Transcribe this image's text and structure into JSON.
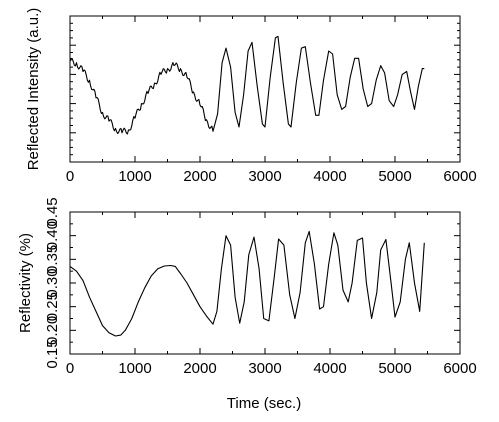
{
  "chart_data": [
    {
      "type": "line",
      "title": "",
      "xlabel": "",
      "ylabel": "Reflected Intensity (a.u.)",
      "xlim": [
        0,
        6000
      ],
      "ylim": [
        0,
        10
      ],
      "xticks": [
        "0",
        "1000",
        "2000",
        "3000",
        "4000",
        "5000",
        "6000"
      ],
      "yticks": [],
      "grid": false,
      "legend": "none",
      "line_color": "#000000",
      "series": [
        {
          "x": [
            0,
            100,
            200,
            300,
            400,
            500,
            600,
            700,
            800,
            900,
            1000,
            1100,
            1200,
            1300,
            1400,
            1500,
            1600,
            1700,
            1800,
            1900,
            2000,
            2100,
            2200,
            2270,
            2340,
            2400,
            2470,
            2540,
            2600,
            2670,
            2740,
            2800,
            2880,
            2960,
            3000,
            3080,
            3160,
            3200,
            3280,
            3360,
            3400,
            3480,
            3560,
            3620,
            3700,
            3780,
            3830,
            3900,
            3980,
            4040,
            4110,
            4180,
            4240,
            4310,
            4380,
            4440,
            4510,
            4580,
            4640,
            4710,
            4780,
            4840,
            4910,
            4980,
            5040,
            5110,
            5180,
            5240,
            5300,
            5360,
            5420,
            5450
          ],
          "values": [
            6.9,
            6.8,
            6.2,
            5.6,
            4.4,
            3.4,
            2.8,
            2.3,
            2.0,
            2.2,
            3.0,
            4.0,
            4.7,
            5.4,
            6.0,
            6.4,
            6.6,
            6.4,
            5.8,
            4.8,
            3.9,
            2.9,
            2.1,
            3.3,
            6.8,
            7.8,
            6.5,
            3.4,
            2.4,
            4.6,
            7.6,
            8.2,
            5.2,
            2.6,
            2.4,
            5.8,
            8.5,
            8.6,
            5.4,
            2.6,
            2.4,
            5.4,
            7.8,
            7.9,
            5.4,
            3.2,
            3.2,
            5.6,
            7.6,
            7.4,
            4.6,
            3.6,
            3.8,
            5.8,
            7.1,
            7.1,
            5.0,
            3.8,
            4.0,
            5.6,
            6.6,
            6.1,
            4.2,
            3.8,
            4.6,
            6.0,
            6.2,
            4.8,
            3.6,
            5.2,
            6.4,
            6.4
          ]
        }
      ]
    },
    {
      "type": "line",
      "title": "",
      "xlabel": "Time (sec.)",
      "ylabel": "Reflectivity (%)",
      "xlim": [
        0,
        6000
      ],
      "ylim": [
        0.15,
        0.45
      ],
      "xticks": [
        "0",
        "1000",
        "2000",
        "3000",
        "4000",
        "5000",
        "6000"
      ],
      "yticks": [
        "0.15",
        "0.20",
        "0.25",
        "0.30",
        "0.35",
        "0.40",
        "0.45"
      ],
      "grid": false,
      "legend": "none",
      "line_color": "#000000",
      "series": [
        {
          "x": [
            0,
            100,
            200,
            300,
            400,
            500,
            600,
            700,
            780,
            850,
            950,
            1050,
            1150,
            1250,
            1350,
            1450,
            1550,
            1620,
            1700,
            1800,
            1900,
            2000,
            2100,
            2200,
            2260,
            2330,
            2400,
            2470,
            2540,
            2610,
            2680,
            2750,
            2830,
            2910,
            2980,
            3060,
            3140,
            3210,
            3290,
            3380,
            3460,
            3540,
            3620,
            3680,
            3760,
            3840,
            3900,
            3980,
            4060,
            4120,
            4200,
            4280,
            4340,
            4420,
            4500,
            4560,
            4640,
            4720,
            4780,
            4860,
            4940,
            5000,
            5080,
            5160,
            5220,
            5300,
            5380,
            5450
          ],
          "values": [
            0.335,
            0.325,
            0.305,
            0.27,
            0.24,
            0.21,
            0.195,
            0.188,
            0.19,
            0.2,
            0.225,
            0.26,
            0.29,
            0.315,
            0.33,
            0.336,
            0.337,
            0.335,
            0.32,
            0.3,
            0.275,
            0.25,
            0.23,
            0.213,
            0.24,
            0.33,
            0.4,
            0.38,
            0.27,
            0.215,
            0.26,
            0.36,
            0.397,
            0.33,
            0.225,
            0.22,
            0.31,
            0.393,
            0.38,
            0.275,
            0.225,
            0.28,
            0.385,
            0.409,
            0.34,
            0.245,
            0.25,
            0.34,
            0.406,
            0.38,
            0.285,
            0.26,
            0.3,
            0.39,
            0.395,
            0.3,
            0.225,
            0.28,
            0.37,
            0.392,
            0.3,
            0.228,
            0.26,
            0.35,
            0.385,
            0.3,
            0.24,
            0.385
          ]
        }
      ]
    }
  ]
}
